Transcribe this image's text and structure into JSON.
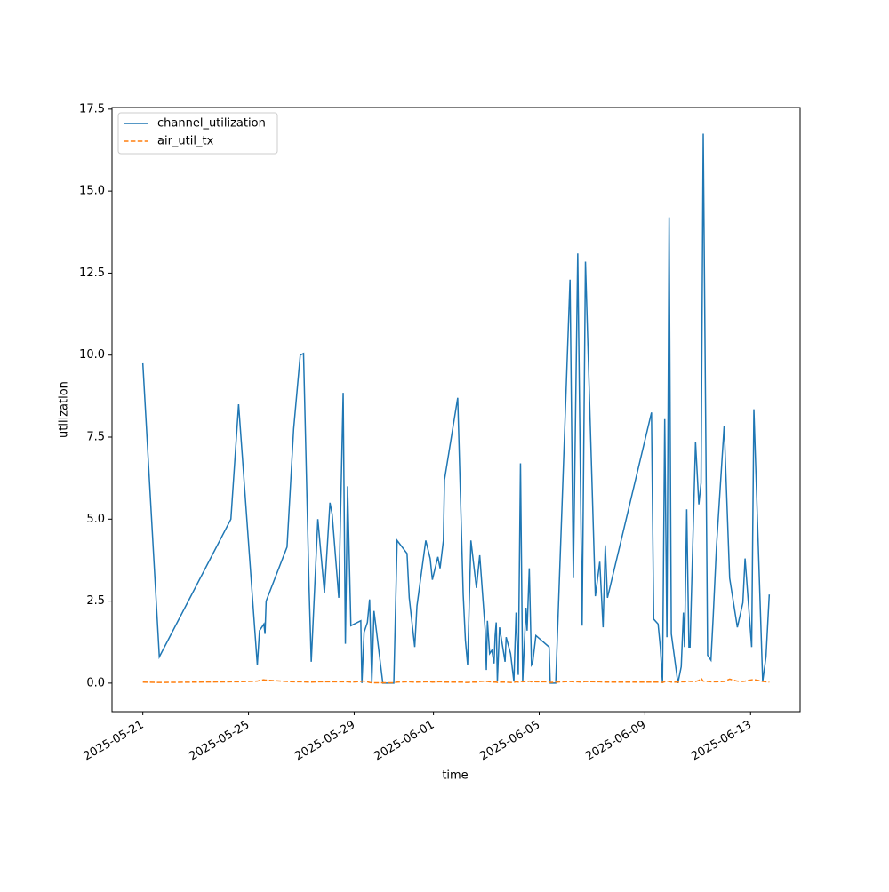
{
  "chart_data": {
    "type": "line",
    "xlabel": "time",
    "ylabel": "utilization",
    "x": [
      "2025-05-21T00:00",
      "2025-05-21T15:00",
      "2025-05-24T08:00",
      "2025-05-24T15:00",
      "2025-05-25T08:00",
      "2025-05-25T10:00",
      "2025-05-25T14:00",
      "2025-05-25T15:00",
      "2025-05-25T16:00",
      "2025-05-26T11:00",
      "2025-05-26T17:00",
      "2025-05-26T23:00",
      "2025-05-27T02:00",
      "2025-05-27T07:00",
      "2025-05-27T09:00",
      "2025-05-27T15:00",
      "2025-05-27T21:00",
      "2025-05-28T02:00",
      "2025-05-28T04:00",
      "2025-05-28T10:00",
      "2025-05-28T14:00",
      "2025-05-28T16:00",
      "2025-05-28T18:00",
      "2025-05-28T21:00",
      "2025-05-29T06:00",
      "2025-05-29T07:00",
      "2025-05-29T09:00",
      "2025-05-29T12:00",
      "2025-05-29T14:00",
      "2025-05-29T16:00",
      "2025-05-29T18:00",
      "2025-05-30T02:00",
      "2025-05-30T12:00",
      "2025-05-30T15:00",
      "2025-05-31T00:00",
      "2025-05-31T02:00",
      "2025-05-31T07:00",
      "2025-05-31T09:00",
      "2025-05-31T17:00",
      "2025-05-31T21:00",
      "2025-05-31T23:00",
      "2025-06-01T04:00",
      "2025-06-01T06:00",
      "2025-06-01T09:00",
      "2025-06-01T10:00",
      "2025-06-01T22:00",
      "2025-06-02T03:00",
      "2025-06-02T05:00",
      "2025-06-02T07:00",
      "2025-06-02T10:00",
      "2025-06-02T15:00",
      "2025-06-02T18:00",
      "2025-06-02T23:00",
      "2025-06-03T00:00",
      "2025-06-03T01:00",
      "2025-06-03T03:00",
      "2025-06-03T05:00",
      "2025-06-03T07:00",
      "2025-06-03T08:00",
      "2025-06-03T09:00",
      "2025-06-03T10:00",
      "2025-06-03T12:00",
      "2025-06-03T17:00",
      "2025-06-03T18:00",
      "2025-06-03T22:00",
      "2025-06-04T01:00",
      "2025-06-04T03:00",
      "2025-06-04T05:00",
      "2025-06-04T07:00",
      "2025-06-04T09:00",
      "2025-06-04T12:00",
      "2025-06-04T13:00",
      "2025-06-04T15:00",
      "2025-06-04T17:00",
      "2025-06-04T18:00",
      "2025-06-04T21:00",
      "2025-06-05T09:00",
      "2025-06-05T10:00",
      "2025-06-05T15:00",
      "2025-06-06T04:00",
      "2025-06-06T07:00",
      "2025-06-06T11:00",
      "2025-06-06T15:00",
      "2025-06-06T18:00",
      "2025-06-07T03:00",
      "2025-06-07T07:00",
      "2025-06-07T10:00",
      "2025-06-07T12:00",
      "2025-06-07T14:00",
      "2025-06-09T06:00",
      "2025-06-09T08:00",
      "2025-06-09T12:00",
      "2025-06-09T14:00",
      "2025-06-09T16:00",
      "2025-06-09T18:00",
      "2025-06-09T20:00",
      "2025-06-09T22:00",
      "2025-06-10T00:00",
      "2025-06-10T06:00",
      "2025-06-10T09:00",
      "2025-06-10T11:00",
      "2025-06-10T12:00",
      "2025-06-10T14:00",
      "2025-06-10T16:00",
      "2025-06-10T17:00",
      "2025-06-10T22:00",
      "2025-06-11T01:00",
      "2025-06-11T03:00",
      "2025-06-11T05:00",
      "2025-06-11T09:00",
      "2025-06-11T12:00",
      "2025-06-11T14:00",
      "2025-06-11T17:00",
      "2025-06-12T00:00",
      "2025-06-12T05:00",
      "2025-06-12T12:00",
      "2025-06-12T17:00",
      "2025-06-12T19:00",
      "2025-06-13T01:00",
      "2025-06-13T03:00",
      "2025-06-13T11:00",
      "2025-06-13T14:00",
      "2025-06-13T17:00"
    ],
    "series": [
      {
        "name": "channel_utilization",
        "color": "#1f77b4",
        "dash": false,
        "values": [
          9.75,
          0.8,
          5.0,
          8.5,
          0.55,
          1.6,
          1.8,
          1.5,
          2.5,
          4.15,
          7.75,
          10.0,
          10.05,
          2.95,
          0.65,
          5.0,
          2.75,
          5.5,
          5.15,
          2.6,
          8.85,
          1.2,
          6.0,
          1.75,
          1.9,
          0,
          1.55,
          1.85,
          2.55,
          0,
          2.2,
          0,
          0,
          4.35,
          3.95,
          2.6,
          1.1,
          2.35,
          4.35,
          3.8,
          3.15,
          3.85,
          3.5,
          4.35,
          6.2,
          8.7,
          2.7,
          1.3,
          0.55,
          4.35,
          2.9,
          3.9,
          1.6,
          0.4,
          1.9,
          0.9,
          1.0,
          0.6,
          1.45,
          1.85,
          0.05,
          1.7,
          0.65,
          1.4,
          0.9,
          0.05,
          2.15,
          0.25,
          6.7,
          0.05,
          2.3,
          1.6,
          3.5,
          0.55,
          0.6,
          1.45,
          1.1,
          0,
          0,
          12.3,
          3.2,
          13.1,
          1.75,
          12.85,
          2.65,
          3.7,
          1.7,
          4.2,
          2.6,
          8.25,
          1.95,
          1.8,
          1.1,
          0,
          8.05,
          1.4,
          14.2,
          1.5,
          0,
          0.5,
          2.15,
          1.1,
          5.3,
          1.1,
          1.1,
          7.35,
          5.45,
          6.1,
          16.75,
          0.85,
          0.7,
          2.0,
          4.15,
          7.85,
          3.2,
          1.7,
          2.45,
          3.8,
          1.1,
          8.35,
          0.05,
          0.8,
          2.7
        ]
      },
      {
        "name": "air_util_tx",
        "color": "#ff7f0e",
        "dash": true,
        "values": [
          0.03,
          0.02,
          0.04,
          0.04,
          0.06,
          0.08,
          0.1,
          0.09,
          0.09,
          0.05,
          0.04,
          0.04,
          0.04,
          0.03,
          0.03,
          0.04,
          0.04,
          0.04,
          0.04,
          0.04,
          0.04,
          0.04,
          0.04,
          0.03,
          0.05,
          0.06,
          0.06,
          0.04,
          0.02,
          0.01,
          0.01,
          0.01,
          0.01,
          0.03,
          0.04,
          0.04,
          0.03,
          0.03,
          0.04,
          0.04,
          0.03,
          0.04,
          0.04,
          0.04,
          0.03,
          0.03,
          0.03,
          0.02,
          0.02,
          0.03,
          0.03,
          0.05,
          0.06,
          0.05,
          0.05,
          0.04,
          0.04,
          0.03,
          0.03,
          0.03,
          0.02,
          0.03,
          0.03,
          0.03,
          0.02,
          0.02,
          0.04,
          0.03,
          0.06,
          0.04,
          0.05,
          0.04,
          0.06,
          0.04,
          0.05,
          0.04,
          0.04,
          0.02,
          0.03,
          0.05,
          0.04,
          0.04,
          0.03,
          0.05,
          0.04,
          0.04,
          0.03,
          0.03,
          0.03,
          0.03,
          0.03,
          0.03,
          0.03,
          0.02,
          0.04,
          0.06,
          0.05,
          0.03,
          0.03,
          0.04,
          0.04,
          0.04,
          0.05,
          0.06,
          0.05,
          0.05,
          0.08,
          0.15,
          0.06,
          0.05,
          0.04,
          0.04,
          0.04,
          0.05,
          0.12,
          0.06,
          0.05,
          0.06,
          0.1,
          0.11,
          0.05,
          0.04,
          0.03
        ]
      }
    ],
    "xlim": [
      "2025-05-19T20:00",
      "2025-06-14T21:00"
    ],
    "xticks": [
      "2025-05-21",
      "2025-05-25",
      "2025-05-29",
      "2025-06-01",
      "2025-06-05",
      "2025-06-09",
      "2025-06-13"
    ],
    "ylim": [
      -0.87,
      17.55
    ],
    "yticks": [
      {
        "value": 0,
        "label": "0.0"
      },
      2.5,
      {
        "value": 5,
        "label": "5.0"
      },
      7.5,
      {
        "value": 10,
        "label": "10.0"
      },
      12.5,
      {
        "value": 15,
        "label": "15.0"
      },
      17.5
    ],
    "legend": "upper left"
  }
}
